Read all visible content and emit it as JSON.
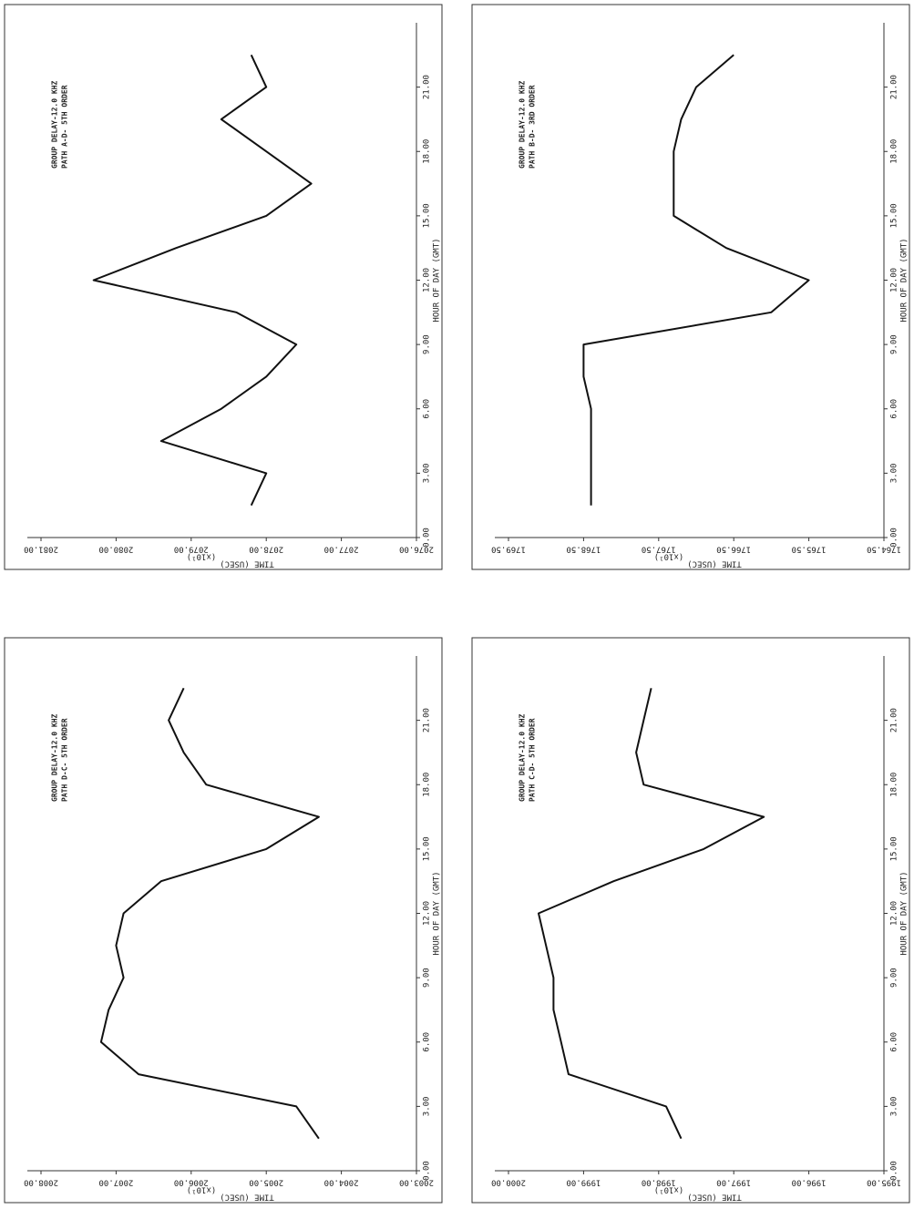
{
  "chart_data": [
    {
      "type": "line",
      "title": "GROUP DELAY-12.0 KHZ",
      "subtitle": "PATH A-D- 5TH ORDER",
      "x_label": "HOUR OF DAY (GMT)",
      "y_label": "TIME (USEC)",
      "y_multiplier": "(x10¹)",
      "color": "#111111",
      "x": [
        1.5,
        3,
        4.5,
        6,
        7.5,
        9,
        10.5,
        12,
        13.5,
        15,
        16.5,
        18,
        19.5,
        21,
        22.5
      ],
      "values": [
        2078.2,
        2078.0,
        2079.4,
        2078.6,
        2078.0,
        2077.6,
        2078.4,
        2080.3,
        2079.2,
        2078.0,
        2077.4,
        2078.0,
        2078.6,
        2078.0,
        2078.2
      ],
      "xlim": [
        0,
        24
      ],
      "ylim": [
        2076,
        2081
      ],
      "xticks": [
        {
          "value": 0,
          "label": "0.00"
        },
        {
          "value": 3,
          "label": "3.00"
        },
        {
          "value": 6,
          "label": "6.00"
        },
        {
          "value": 9,
          "label": "9.00"
        },
        {
          "value": 12,
          "label": "12.00"
        },
        {
          "value": 15,
          "label": "15.00"
        },
        {
          "value": 18,
          "label": "18.00"
        },
        {
          "value": 21,
          "label": "21.00"
        }
      ],
      "yticks": [
        {
          "value": 2076,
          "label": "2076.00"
        },
        {
          "value": 2077,
          "label": "2077.00"
        },
        {
          "value": 2078,
          "label": "2078.00"
        },
        {
          "value": 2079,
          "label": "2079.00"
        },
        {
          "value": 2080,
          "label": "2080.00"
        },
        {
          "value": 2081,
          "label": "2081.00"
        }
      ]
    },
    {
      "type": "line",
      "title": "GROUP DELAY-12.0 KHZ",
      "subtitle": "PATH B-D- 3RD ORDER",
      "x_label": "HOUR OF DAY (GMT)",
      "y_label": "TIME (USEC)",
      "y_multiplier": "(x10¹)",
      "color": "#111111",
      "x": [
        1.5,
        3,
        4.5,
        6,
        7.5,
        9,
        10.5,
        12,
        13.5,
        15,
        16.5,
        18,
        19.5,
        21,
        22.5
      ],
      "values": [
        1768.4,
        1768.4,
        1768.4,
        1768.4,
        1768.5,
        1768.5,
        1766.0,
        1765.5,
        1766.6,
        1767.3,
        1767.3,
        1767.3,
        1767.2,
        1767.0,
        1766.5
      ],
      "xlim": [
        0,
        24
      ],
      "ylim": [
        1764.5,
        1769.5
      ],
      "xticks": [
        {
          "value": 0,
          "label": "0.00"
        },
        {
          "value": 3,
          "label": "3.00"
        },
        {
          "value": 6,
          "label": "6.00"
        },
        {
          "value": 9,
          "label": "9.00"
        },
        {
          "value": 12,
          "label": "12.00"
        },
        {
          "value": 15,
          "label": "15.00"
        },
        {
          "value": 18,
          "label": "18.00"
        },
        {
          "value": 21,
          "label": "21.00"
        }
      ],
      "yticks": [
        {
          "value": 1764.5,
          "label": "1764.50"
        },
        {
          "value": 1765.5,
          "label": "1765.50"
        },
        {
          "value": 1766.5,
          "label": "1766.50"
        },
        {
          "value": 1767.5,
          "label": "1767.50"
        },
        {
          "value": 1768.5,
          "label": "1768.50"
        },
        {
          "value": 1769.5,
          "label": "1769.50"
        }
      ]
    },
    {
      "type": "line",
      "title": "GROUP DELAY-12.0 KHZ",
      "subtitle": "PATH D-C- 5TH ORDER",
      "x_label": "HOUR OF DAY (GMT)",
      "y_label": "TIME (USEC)",
      "y_multiplier": "(x10¹)",
      "color": "#111111",
      "x": [
        1.5,
        3,
        4.5,
        6,
        7.5,
        9,
        10.5,
        12,
        13.5,
        15,
        16.5,
        18,
        19.5,
        21,
        22.5
      ],
      "values": [
        2004.3,
        2004.6,
        2006.7,
        2007.2,
        2007.1,
        2006.9,
        2007.0,
        2006.9,
        2006.4,
        2005.0,
        2004.3,
        2005.8,
        2006.1,
        2006.3,
        2006.1
      ],
      "xlim": [
        0,
        24
      ],
      "ylim": [
        2003,
        2008
      ],
      "xticks": [
        {
          "value": 0,
          "label": "0.00"
        },
        {
          "value": 3,
          "label": "3.00"
        },
        {
          "value": 6,
          "label": "6.00"
        },
        {
          "value": 9,
          "label": "9.00"
        },
        {
          "value": 12,
          "label": "12.00"
        },
        {
          "value": 15,
          "label": "15.00"
        },
        {
          "value": 18,
          "label": "18.00"
        },
        {
          "value": 21,
          "label": "21.00"
        }
      ],
      "yticks": [
        {
          "value": 2003,
          "label": "2003.00"
        },
        {
          "value": 2004,
          "label": "2004.00"
        },
        {
          "value": 2005,
          "label": "2005.00"
        },
        {
          "value": 2006,
          "label": "2006.00"
        },
        {
          "value": 2007,
          "label": "2007.00"
        },
        {
          "value": 2008,
          "label": "2008.00"
        }
      ]
    },
    {
      "type": "line",
      "title": "GROUP DELAY-12.0 KHZ",
      "subtitle": "PATH C-D- 5TH ORDER",
      "x_label": "HOUR OF DAY (GMT)",
      "y_label": "TIME (USEC)",
      "y_multiplier": "(x10¹)",
      "color": "#111111",
      "x": [
        1.5,
        3,
        4.5,
        6,
        7.5,
        9,
        10.5,
        12,
        13.5,
        15,
        16.5,
        18,
        19.5,
        21,
        22.5
      ],
      "values": [
        1997.7,
        1997.9,
        1999.2,
        1999.3,
        1999.4,
        1999.4,
        1999.5,
        1999.6,
        1998.6,
        1997.4,
        1996.6,
        1998.2,
        1998.3,
        1998.2,
        1998.1
      ],
      "xlim": [
        0,
        24
      ],
      "ylim": [
        1995,
        2000
      ],
      "xticks": [
        {
          "value": 0,
          "label": "0.00"
        },
        {
          "value": 3,
          "label": "3.00"
        },
        {
          "value": 6,
          "label": "6.00"
        },
        {
          "value": 9,
          "label": "9.00"
        },
        {
          "value": 12,
          "label": "12.00"
        },
        {
          "value": 15,
          "label": "15.00"
        },
        {
          "value": 18,
          "label": "18.00"
        },
        {
          "value": 21,
          "label": "21.00"
        }
      ],
      "yticks": [
        {
          "value": 1995,
          "label": "1995.00"
        },
        {
          "value": 1996,
          "label": "1996.00"
        },
        {
          "value": 1997,
          "label": "1997.00"
        },
        {
          "value": 1998,
          "label": "1998.00"
        },
        {
          "value": 1999,
          "label": "1999.00"
        },
        {
          "value": 2000,
          "label": "2000.00"
        }
      ]
    }
  ]
}
